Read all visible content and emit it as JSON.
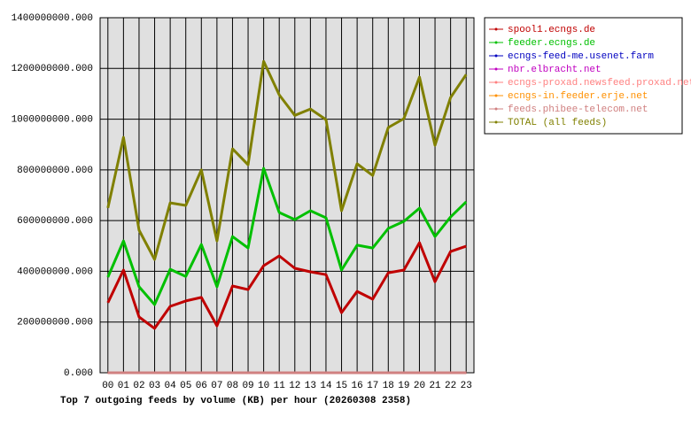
{
  "chart_data": {
    "type": "line",
    "title": "Top 7 outgoing feeds by volume (KB) per hour (20260308 2358)",
    "categories": [
      "00",
      "01",
      "02",
      "03",
      "04",
      "05",
      "06",
      "07",
      "08",
      "09",
      "10",
      "11",
      "12",
      "13",
      "14",
      "15",
      "16",
      "17",
      "18",
      "19",
      "20",
      "21",
      "22",
      "23"
    ],
    "ylim": [
      0,
      1400000000
    ],
    "yticks": [
      {
        "value": 0,
        "label": "0.000"
      },
      {
        "value": 200000000,
        "label": "200000000.000"
      },
      {
        "value": 400000000,
        "label": "400000000.000"
      },
      {
        "value": 600000000,
        "label": "600000000.000"
      },
      {
        "value": 800000000,
        "label": "800000000.000"
      },
      {
        "value": 1000000000,
        "label": "1000000000.000"
      },
      {
        "value": 1200000000,
        "label": "1200000000.000"
      },
      {
        "value": 1400000000,
        "label": "1400000000.000"
      }
    ],
    "grid": true,
    "series": [
      {
        "name": "spool1.ecngs.de",
        "color": "#c00000",
        "values": [
          276000000,
          405000000,
          220000000,
          175000000,
          262000000,
          283000000,
          297000000,
          185000000,
          342000000,
          328000000,
          422000000,
          461000000,
          412000000,
          398000000,
          387000000,
          237000000,
          321000000,
          290000000,
          394000000,
          405000000,
          513000000,
          359000000,
          478000000,
          499000000
        ]
      },
      {
        "name": "feeder.ecngs.de",
        "color": "#00c000",
        "values": [
          377000000,
          520000000,
          339000000,
          269000000,
          408000000,
          380000000,
          506000000,
          339000000,
          537000000,
          492000000,
          806000000,
          632000000,
          604000000,
          639000000,
          611000000,
          405000000,
          503000000,
          492000000,
          569000000,
          597000000,
          649000000,
          537000000,
          614000000,
          674000000
        ]
      },
      {
        "name": "ecngs-feed-me.usenet.farm",
        "color": "#0000c0",
        "values": [
          0,
          0,
          0,
          0,
          0,
          0,
          0,
          0,
          0,
          0,
          0,
          0,
          0,
          0,
          0,
          0,
          0,
          0,
          0,
          0,
          0,
          0,
          0,
          0
        ]
      },
      {
        "name": "nbr.elbracht.net",
        "color": "#c000c0",
        "values": [
          0,
          0,
          0,
          0,
          0,
          0,
          0,
          0,
          0,
          0,
          0,
          0,
          0,
          0,
          0,
          0,
          0,
          0,
          0,
          0,
          0,
          0,
          0,
          0
        ]
      },
      {
        "name": "ecngs-proxad.newsfeed.proxad.net",
        "color": "#ff8080",
        "values": [
          0,
          0,
          0,
          0,
          0,
          0,
          0,
          0,
          0,
          0,
          0,
          0,
          0,
          0,
          0,
          0,
          0,
          0,
          0,
          0,
          0,
          0,
          0,
          0
        ]
      },
      {
        "name": "ecngs-in.feeder.erje.net",
        "color": "#ff9000",
        "values": [
          0,
          0,
          0,
          0,
          0,
          0,
          0,
          0,
          0,
          0,
          0,
          0,
          0,
          0,
          0,
          0,
          0,
          0,
          0,
          0,
          0,
          0,
          0,
          0
        ]
      },
      {
        "name": "feeds.phibee-telecom.net",
        "color": "#d08080",
        "values": [
          0,
          0,
          0,
          0,
          0,
          0,
          0,
          0,
          0,
          0,
          0,
          0,
          0,
          0,
          0,
          0,
          0,
          0,
          0,
          0,
          0,
          0,
          0,
          0
        ]
      },
      {
        "name": "TOTAL (all feeds)",
        "color": "#808000",
        "values": [
          650000000,
          928000000,
          562000000,
          447000000,
          670000000,
          660000000,
          800000000,
          520000000,
          883000000,
          820000000,
          1228000000,
          1096000000,
          1015000000,
          1040000000,
          998000000,
          639000000,
          824000000,
          778000000,
          967000000,
          1002000000,
          1166000000,
          897000000,
          1085000000,
          1176000000
        ]
      }
    ]
  }
}
